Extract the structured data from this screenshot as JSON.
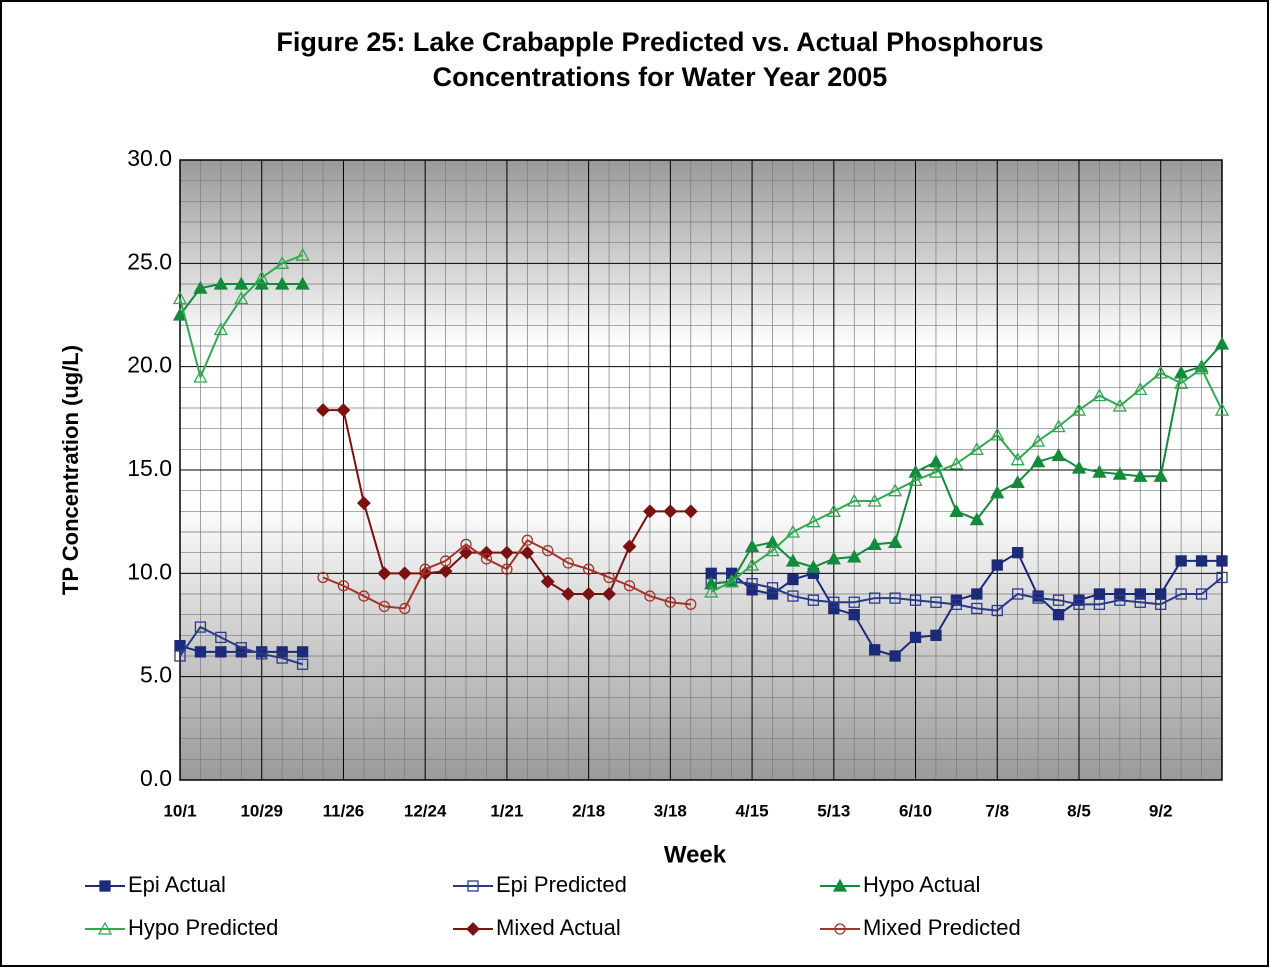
{
  "chart_data": {
    "type": "line",
    "title": [
      "Figure 25:  Lake Crabapple Predicted vs. Actual Phosphorus",
      "Concentrations for Water Year 2005"
    ],
    "x_label": "Week",
    "y_label": "TP Concentration (ug/L)",
    "categories": [
      "10/1",
      null,
      null,
      null,
      "10/29",
      null,
      null,
      null,
      "11/26",
      null,
      null,
      null,
      "12/24",
      null,
      null,
      null,
      "1/21",
      null,
      null,
      null,
      "2/18",
      null,
      null,
      null,
      "3/18",
      null,
      null,
      null,
      "4/15",
      null,
      null,
      null,
      "5/13",
      null,
      null,
      null,
      "6/10",
      null,
      null,
      null,
      "7/8",
      null,
      null,
      null,
      "8/5",
      null,
      null,
      null,
      "9/2",
      null,
      null,
      null
    ],
    "ylim": [
      0,
      30
    ],
    "yticks": [
      {
        "value": 0,
        "label": "0.0"
      },
      {
        "value": 5,
        "label": "5.0"
      },
      {
        "value": 10,
        "label": "10.0"
      },
      {
        "value": 15,
        "label": "15.0"
      },
      {
        "value": 20,
        "label": "20.0"
      },
      {
        "value": 25,
        "label": "25.0"
      },
      {
        "value": 30,
        "label": "30.0"
      }
    ],
    "grid": true,
    "legend": "bottom",
    "series": [
      {
        "name": "Epi Actual",
        "color": "#1c2a78",
        "marker": "square",
        "filled": true,
        "values": [
          6.5,
          6.2,
          6.2,
          6.2,
          6.2,
          6.2,
          6.2,
          null,
          null,
          null,
          null,
          null,
          null,
          null,
          null,
          null,
          null,
          null,
          null,
          null,
          null,
          null,
          null,
          null,
          null,
          null,
          10.0,
          10.0,
          9.2,
          9.0,
          9.7,
          10.0,
          8.3,
          8.0,
          6.3,
          6.0,
          6.9,
          7.0,
          8.7,
          9.0,
          10.4,
          11.0,
          8.9,
          8.0,
          8.7,
          9.0,
          9.0,
          9.0,
          9.0,
          10.6,
          10.6,
          10.6
        ]
      },
      {
        "name": "Epi Predicted",
        "color": "#2a3a88",
        "marker": "square",
        "filled": false,
        "values": [
          6.0,
          7.4,
          6.9,
          6.4,
          6.1,
          5.9,
          5.6,
          null,
          null,
          null,
          null,
          null,
          null,
          null,
          null,
          null,
          null,
          null,
          null,
          null,
          null,
          null,
          null,
          null,
          null,
          null,
          9.5,
          9.6,
          9.5,
          9.3,
          8.9,
          8.7,
          8.6,
          8.6,
          8.8,
          8.8,
          8.7,
          8.6,
          8.5,
          8.3,
          8.2,
          9.0,
          8.8,
          8.7,
          8.5,
          8.5,
          8.7,
          8.6,
          8.5,
          9.0,
          9.0,
          9.8
        ]
      },
      {
        "name": "Hypo Actual",
        "color": "#138a3c",
        "marker": "triangle",
        "filled": true,
        "values": [
          22.5,
          23.8,
          24.0,
          24.0,
          24.0,
          24.0,
          24.0,
          null,
          null,
          null,
          null,
          null,
          null,
          null,
          null,
          null,
          null,
          null,
          null,
          null,
          null,
          null,
          null,
          null,
          null,
          null,
          9.5,
          9.6,
          11.3,
          11.5,
          10.6,
          10.3,
          10.7,
          10.8,
          11.4,
          11.5,
          14.9,
          15.4,
          13.0,
          12.6,
          13.9,
          14.4,
          15.4,
          15.7,
          15.1,
          14.9,
          14.8,
          14.7,
          14.7,
          19.7,
          20.0,
          21.1
        ]
      },
      {
        "name": "Hypo Predicted",
        "color": "#33a852",
        "marker": "triangle",
        "filled": false,
        "values": [
          23.3,
          19.5,
          21.8,
          23.3,
          24.3,
          25.0,
          25.4,
          null,
          null,
          null,
          null,
          null,
          null,
          null,
          null,
          null,
          null,
          null,
          null,
          null,
          null,
          null,
          null,
          null,
          null,
          null,
          9.1,
          9.6,
          10.4,
          11.1,
          12.0,
          12.5,
          13.0,
          13.5,
          13.5,
          14.0,
          14.5,
          14.9,
          15.3,
          16.0,
          16.7,
          15.5,
          16.4,
          17.1,
          17.9,
          18.6,
          18.1,
          18.9,
          19.7,
          19.2,
          19.9,
          17.9
        ]
      },
      {
        "name": "Mixed Actual",
        "color": "#7a1212",
        "marker": "diamond",
        "filled": true,
        "values": [
          null,
          null,
          null,
          null,
          null,
          null,
          null,
          17.9,
          17.9,
          13.4,
          10.0,
          10.0,
          10.0,
          10.1,
          11.0,
          11.0,
          11.0,
          11.0,
          9.6,
          9.0,
          9.0,
          9.0,
          11.3,
          13.0,
          13.0,
          13.0,
          null,
          null,
          null,
          null,
          null,
          null,
          null,
          null,
          null,
          null,
          null,
          null,
          null,
          null,
          null,
          null,
          null,
          null,
          null,
          null,
          null,
          null,
          null,
          null,
          null,
          null
        ]
      },
      {
        "name": "Mixed Predicted",
        "color": "#a3342c",
        "marker": "circle",
        "filled": false,
        "values": [
          null,
          null,
          null,
          null,
          null,
          null,
          null,
          9.8,
          9.4,
          8.9,
          8.4,
          8.3,
          10.2,
          10.6,
          11.4,
          10.7,
          10.2,
          11.6,
          11.1,
          10.5,
          10.2,
          9.8,
          9.4,
          8.9,
          8.6,
          8.5,
          null,
          null,
          null,
          null,
          null,
          null,
          null,
          null,
          null,
          null,
          null,
          null,
          null,
          null,
          null,
          null,
          null,
          null,
          null,
          null,
          null,
          null,
          null,
          null,
          null,
          null
        ]
      }
    ]
  }
}
